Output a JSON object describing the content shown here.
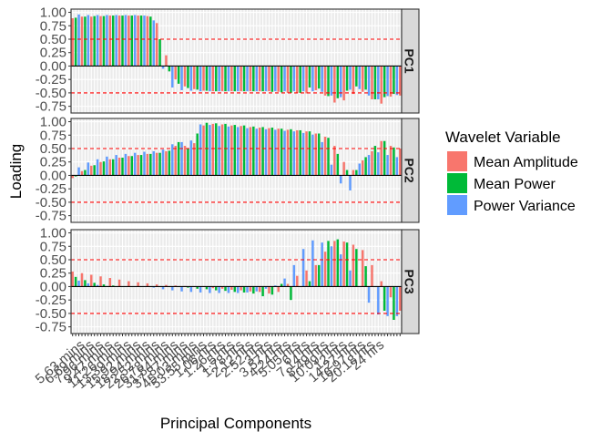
{
  "chart_data": {
    "type": "bar",
    "title": "",
    "xlabel": "Principal Components",
    "ylabel": "Loading",
    "ylim": [
      -0.875,
      1.06
    ],
    "y_ticks": [
      1.0,
      0.75,
      0.5,
      0.25,
      0.0,
      -0.25,
      -0.5,
      -0.75
    ],
    "y_tick_labels": [
      "1.00",
      "0.75",
      "0.50",
      "0.25",
      "0.00",
      "-0.25",
      "-0.50",
      "-0.75"
    ],
    "reference_lines": [
      0.5,
      -0.5
    ],
    "reference_line_color": "#FF0000",
    "grid": true,
    "facet_labels": [
      "PC1",
      "PC2",
      "PC3"
    ],
    "legend": {
      "title": "Wavelet Variable",
      "position": "right",
      "entries": [
        {
          "name": "Mean Amplitude",
          "color": "#F8766D"
        },
        {
          "name": "Mean Power",
          "color": "#00BA38"
        },
        {
          "name": "Power Variance",
          "color": "#619CFF"
        }
      ]
    },
    "x_tick_labels": [
      "5.63 mins",
      "6.69 mins",
      "7.96 mins",
      "9.47 mins",
      "11.26 mins",
      "13.39 mins",
      "15.92 mins",
      "18.94 mins",
      "22.52 mins",
      "26.78 mins",
      "31.84 mins",
      "37.87 mins",
      "45.03 mins",
      "53.55 mins",
      "1.06 hrs",
      "1.26 hrs",
      "1.5 hrs",
      "1.78 hrs",
      "2.12 hrs",
      "2.52 hrs",
      "3 hrs",
      "3.57 hrs",
      "4.24 hrs",
      "5.05 hrs",
      "6 hrs",
      "7.14 hrs",
      "8.49 hrs",
      "10.09 hrs",
      "12 hrs",
      "14.27 hrs",
      "16.97 hrs",
      "20.18 hrs",
      "24 hrs"
    ],
    "categories_per_label": 3,
    "series": [
      {
        "name": "Mean Amplitude",
        "panel": "PC1",
        "values": [
          0.89,
          0.92,
          0.91,
          0.92,
          0.92,
          0.92,
          0.92,
          0.93,
          0.93,
          0.93,
          0.93,
          0.93,
          0.94,
          0.94,
          0.94,
          0.94,
          0.94,
          0.94,
          0.94,
          0.94,
          0.94,
          0.94,
          0.94,
          0.94,
          0.93,
          0.92,
          0.9,
          0.8,
          0.58,
          0.45,
          0.2,
          -0.05,
          -0.15,
          -0.25,
          -0.32,
          -0.35,
          -0.38,
          -0.4,
          -0.42,
          -0.43,
          -0.44,
          -0.45,
          -0.46,
          -0.46,
          -0.46,
          -0.47,
          -0.47,
          -0.47,
          -0.47,
          -0.47,
          -0.47,
          -0.47,
          -0.47,
          -0.47,
          -0.47,
          -0.47,
          -0.47,
          -0.47,
          -0.47,
          -0.47,
          -0.47,
          -0.47,
          -0.47,
          -0.47,
          -0.48,
          -0.48,
          -0.48,
          -0.49,
          -0.5,
          -0.5,
          -0.5,
          -0.5,
          -0.5,
          -0.5,
          -0.51,
          -0.51,
          -0.46,
          -0.44,
          -0.45,
          -0.48,
          -0.52,
          -0.55,
          -0.6,
          -0.65,
          -0.68,
          -0.7,
          -0.68,
          -0.64,
          -0.6,
          -0.56,
          -0.52,
          -0.49,
          -0.48,
          -0.48,
          -0.5,
          -0.56,
          -0.62,
          -0.7,
          -0.74,
          -0.7,
          -0.64,
          -0.6,
          -0.57,
          -0.55,
          -0.54,
          -0.55
        ]
      },
      {
        "name": "Mean Power",
        "panel": "PC1",
        "values": [
          0.85,
          0.9,
          0.91,
          0.91,
          0.92,
          0.92,
          0.92,
          0.93,
          0.93,
          0.93,
          0.93,
          0.93,
          0.94,
          0.94,
          0.94,
          0.94,
          0.94,
          0.94,
          0.94,
          0.94,
          0.94,
          0.94,
          0.94,
          0.94,
          0.93,
          0.92,
          0.88,
          0.72,
          0.5,
          0.3,
          0.05,
          -0.1,
          -0.18,
          -0.26,
          -0.33,
          -0.36,
          -0.39,
          -0.41,
          -0.42,
          -0.43,
          -0.44,
          -0.45,
          -0.46,
          -0.46,
          -0.46,
          -0.47,
          -0.47,
          -0.47,
          -0.47,
          -0.47,
          -0.47,
          -0.47,
          -0.47,
          -0.47,
          -0.47,
          -0.47,
          -0.47,
          -0.47,
          -0.47,
          -0.47,
          -0.47,
          -0.47,
          -0.47,
          -0.47,
          -0.48,
          -0.48,
          -0.48,
          -0.49,
          -0.5,
          -0.5,
          -0.5,
          -0.5,
          -0.5,
          -0.5,
          -0.49,
          -0.46,
          -0.4,
          -0.36,
          -0.38,
          -0.42,
          -0.48,
          -0.52,
          -0.56,
          -0.6,
          -0.62,
          -0.6,
          -0.55,
          -0.5,
          -0.46,
          -0.43,
          -0.4,
          -0.38,
          -0.38,
          -0.4,
          -0.44,
          -0.5,
          -0.56,
          -0.62,
          -0.66,
          -0.62,
          -0.58,
          -0.55,
          -0.53,
          -0.52,
          -0.52,
          -0.52
        ]
      },
      {
        "name": "Power Variance",
        "panel": "PC1",
        "values": [
          0.97,
          0.96,
          0.96,
          0.95,
          0.95,
          0.95,
          0.95,
          0.95,
          0.95,
          0.95,
          0.95,
          0.95,
          0.95,
          0.95,
          0.95,
          0.95,
          0.95,
          0.95,
          0.95,
          0.95,
          0.95,
          0.95,
          0.94,
          0.94,
          0.92,
          0.9,
          0.85,
          0.6,
          0.25,
          -0.05,
          -0.25,
          -0.35,
          -0.4,
          -0.43,
          -0.44,
          -0.45,
          -0.45,
          -0.46,
          -0.46,
          -0.47,
          -0.47,
          -0.47,
          -0.47,
          -0.47,
          -0.47,
          -0.47,
          -0.47,
          -0.47,
          -0.47,
          -0.47,
          -0.47,
          -0.47,
          -0.47,
          -0.47,
          -0.47,
          -0.47,
          -0.47,
          -0.47,
          -0.47,
          -0.47,
          -0.47,
          -0.47,
          -0.47,
          -0.47,
          -0.47,
          -0.47,
          -0.47,
          -0.47,
          -0.47,
          -0.47,
          -0.47,
          -0.47,
          -0.47,
          -0.47,
          -0.47,
          -0.47,
          -0.47,
          -0.47,
          -0.47,
          -0.47,
          -0.48,
          -0.48,
          -0.5,
          -0.55,
          -0.6,
          -0.62,
          -0.58,
          -0.52,
          -0.47,
          -0.44,
          -0.42,
          -0.42,
          -0.43,
          -0.45,
          -0.5,
          -0.55,
          -0.58,
          -0.6,
          -0.62,
          -0.6,
          -0.58,
          -0.56,
          -0.55,
          -0.54,
          -0.54,
          -0.54
        ]
      },
      {
        "name": "Mean Amplitude",
        "panel": "PC2",
        "values": [
          -0.05,
          0.02,
          0.05,
          0.08,
          0.12,
          0.15,
          0.18,
          0.2,
          0.22,
          0.25,
          0.27,
          0.28,
          0.3,
          0.31,
          0.32,
          0.33,
          0.34,
          0.35,
          0.36,
          0.37,
          0.38,
          0.38,
          0.39,
          0.4,
          0.4,
          0.41,
          0.42,
          0.42,
          0.43,
          0.44,
          0.45,
          0.47,
          0.5,
          0.55,
          0.6,
          0.65,
          0.55,
          0.48,
          0.5,
          0.6,
          0.75,
          0.85,
          0.93,
          0.95,
          0.96,
          0.96,
          0.96,
          0.95,
          0.95,
          0.94,
          0.94,
          0.93,
          0.93,
          0.92,
          0.92,
          0.91,
          0.91,
          0.9,
          0.9,
          0.9,
          0.89,
          0.89,
          0.88,
          0.88,
          0.88,
          0.87,
          0.87,
          0.86,
          0.86,
          0.85,
          0.85,
          0.84,
          0.84,
          0.83,
          0.82,
          0.82,
          0.81,
          0.8,
          0.78,
          0.76,
          0.74,
          0.72,
          0.7,
          0.65,
          0.55,
          0.45,
          0.35,
          0.25,
          0.18,
          0.12,
          0.1,
          0.12,
          0.2,
          0.28,
          0.35,
          0.4,
          0.45,
          0.52,
          0.6,
          0.64,
          0.62,
          0.58,
          0.55,
          0.52,
          0.5,
          0.5
        ]
      },
      {
        "name": "Mean Power",
        "panel": "PC2",
        "values": [
          -0.08,
          -0.02,
          0.03,
          0.06,
          0.1,
          0.13,
          0.16,
          0.19,
          0.21,
          0.24,
          0.26,
          0.27,
          0.29,
          0.3,
          0.31,
          0.32,
          0.33,
          0.34,
          0.35,
          0.36,
          0.37,
          0.37,
          0.38,
          0.39,
          0.39,
          0.4,
          0.41,
          0.41,
          0.42,
          0.43,
          0.44,
          0.46,
          0.5,
          0.56,
          0.62,
          0.68,
          0.58,
          0.5,
          0.52,
          0.62,
          0.78,
          0.88,
          0.96,
          0.98,
          0.98,
          0.98,
          0.97,
          0.97,
          0.96,
          0.96,
          0.95,
          0.95,
          0.94,
          0.94,
          0.93,
          0.93,
          0.92,
          0.92,
          0.91,
          0.91,
          0.9,
          0.9,
          0.9,
          0.89,
          0.89,
          0.88,
          0.88,
          0.87,
          0.87,
          0.86,
          0.86,
          0.85,
          0.85,
          0.84,
          0.84,
          0.83,
          0.82,
          0.81,
          0.8,
          0.78,
          0.76,
          0.74,
          0.7,
          0.64,
          0.52,
          0.4,
          0.28,
          0.18,
          0.1,
          0.05,
          0.05,
          0.1,
          0.18,
          0.26,
          0.34,
          0.4,
          0.47,
          0.55,
          0.62,
          0.66,
          0.64,
          0.6,
          0.56,
          0.52,
          0.5,
          0.48
        ]
      },
      {
        "name": "Power Variance",
        "panel": "PC2",
        "values": [
          0.08,
          0.12,
          0.15,
          0.18,
          0.21,
          0.24,
          0.26,
          0.28,
          0.3,
          0.32,
          0.34,
          0.35,
          0.36,
          0.37,
          0.38,
          0.39,
          0.4,
          0.4,
          0.41,
          0.42,
          0.42,
          0.43,
          0.43,
          0.44,
          0.44,
          0.45,
          0.45,
          0.46,
          0.47,
          0.48,
          0.5,
          0.53,
          0.58,
          0.63,
          0.7,
          0.62,
          0.52,
          0.54,
          0.65,
          0.78,
          0.9,
          0.95,
          0.95,
          0.94,
          0.94,
          0.93,
          0.93,
          0.92,
          0.92,
          0.91,
          0.91,
          0.9,
          0.9,
          0.9,
          0.89,
          0.89,
          0.88,
          0.88,
          0.88,
          0.87,
          0.87,
          0.86,
          0.86,
          0.85,
          0.85,
          0.85,
          0.84,
          0.84,
          0.83,
          0.83,
          0.82,
          0.82,
          0.81,
          0.8,
          0.79,
          0.78,
          0.77,
          0.76,
          0.74,
          0.7,
          0.62,
          0.5,
          0.35,
          0.2,
          0.05,
          -0.05,
          -0.15,
          -0.3,
          -0.4,
          -0.28,
          -0.1,
          0.1,
          0.22,
          0.3,
          0.35,
          0.38,
          0.4,
          0.42,
          0.43,
          0.42,
          0.4,
          0.38,
          0.36,
          0.35,
          0.34,
          0.34
        ]
      },
      {
        "name": "Mean Amplitude",
        "panel": "PC3",
        "values": [
          0.28,
          0.27,
          0.26,
          0.25,
          0.24,
          0.23,
          0.22,
          0.21,
          0.2,
          0.19,
          0.18,
          0.17,
          0.16,
          0.15,
          0.14,
          0.13,
          0.12,
          0.11,
          0.1,
          0.09,
          0.08,
          0.08,
          0.07,
          0.06,
          0.06,
          0.05,
          0.05,
          0.04,
          0.04,
          0.03,
          0.03,
          0.03,
          0.02,
          0.02,
          0.02,
          0.01,
          0.01,
          0.01,
          0.0,
          0.0,
          0.0,
          -0.01,
          -0.01,
          -0.02,
          -0.02,
          -0.03,
          -0.03,
          -0.04,
          -0.04,
          -0.05,
          -0.05,
          -0.06,
          -0.06,
          -0.07,
          -0.07,
          -0.08,
          -0.08,
          -0.09,
          -0.09,
          -0.1,
          -0.1,
          -0.11,
          -0.12,
          -0.13,
          -0.14,
          -0.12,
          -0.1,
          -0.05,
          0.0,
          0.05,
          0.1,
          0.15,
          0.2,
          0.25,
          0.28,
          0.3,
          0.32,
          0.35,
          0.4,
          0.45,
          0.55,
          0.65,
          0.75,
          0.82,
          0.85,
          0.86,
          0.85,
          0.84,
          0.82,
          0.8,
          0.78,
          0.76,
          0.72,
          0.68,
          0.6,
          0.5,
          0.4,
          0.3,
          0.2,
          0.1,
          0.0,
          -0.1,
          -0.2,
          -0.3,
          -0.4,
          -0.45
        ]
      },
      {
        "name": "Mean Power",
        "panel": "PC3",
        "values": [
          0.2,
          0.18,
          0.16,
          0.14,
          0.12,
          0.1,
          0.08,
          0.07,
          0.06,
          0.05,
          0.04,
          0.03,
          0.02,
          0.02,
          0.01,
          0.01,
          0.0,
          0.0,
          0.0,
          0.0,
          0.0,
          0.0,
          0.0,
          0.0,
          0.0,
          0.0,
          0.0,
          0.0,
          0.0,
          0.0,
          0.0,
          0.0,
          0.0,
          0.0,
          -0.01,
          -0.01,
          -0.02,
          -0.02,
          -0.03,
          -0.03,
          -0.04,
          -0.04,
          -0.05,
          -0.05,
          -0.06,
          -0.06,
          -0.07,
          -0.07,
          -0.08,
          -0.08,
          -0.09,
          -0.09,
          -0.1,
          -0.1,
          -0.11,
          -0.11,
          -0.12,
          -0.12,
          -0.13,
          -0.14,
          -0.15,
          -0.18,
          -0.22,
          -0.2,
          -0.15,
          -0.08,
          0.0,
          0.05,
          -0.05,
          -0.15,
          -0.25,
          -0.2,
          -0.1,
          0.0,
          0.1,
          0.15,
          0.1,
          0.05,
          0.2,
          0.4,
          0.6,
          0.75,
          0.85,
          0.9,
          0.9,
          0.88,
          0.86,
          0.84,
          0.82,
          0.8,
          0.75,
          0.7,
          0.62,
          0.5,
          0.38,
          0.25,
          0.12,
          0.0,
          -0.15,
          -0.3,
          -0.45,
          -0.55,
          -0.6,
          -0.62,
          -0.62,
          -0.6
        ]
      },
      {
        "name": "Power Variance",
        "panel": "PC3",
        "values": [
          0.15,
          0.13,
          0.11,
          0.09,
          0.08,
          0.06,
          0.05,
          0.04,
          0.03,
          0.02,
          0.01,
          0.01,
          0.0,
          0.0,
          0.0,
          0.0,
          0.0,
          0.0,
          0.0,
          0.0,
          0.0,
          0.0,
          0.0,
          0.0,
          0.0,
          -0.01,
          -0.02,
          -0.03,
          -0.04,
          -0.05,
          -0.06,
          -0.07,
          -0.07,
          -0.08,
          -0.08,
          -0.09,
          -0.09,
          -0.1,
          -0.1,
          -0.1,
          -0.11,
          -0.11,
          -0.11,
          -0.12,
          -0.12,
          -0.12,
          -0.12,
          -0.12,
          -0.12,
          -0.12,
          -0.12,
          -0.12,
          -0.12,
          -0.12,
          -0.12,
          -0.11,
          -0.11,
          -0.1,
          -0.1,
          -0.09,
          -0.08,
          -0.06,
          -0.04,
          -0.02,
          0.0,
          0.02,
          0.05,
          0.1,
          0.15,
          0.2,
          0.3,
          0.4,
          0.5,
          0.6,
          0.7,
          0.8,
          0.85,
          0.86,
          0.85,
          0.84,
          0.82,
          0.8,
          0.78,
          0.75,
          0.72,
          0.68,
          0.6,
          0.5,
          0.4,
          0.3,
          0.2,
          0.1,
          0.0,
          -0.1,
          -0.2,
          -0.3,
          -0.4,
          -0.48,
          -0.52,
          -0.55,
          -0.55,
          -0.55,
          -0.55,
          -0.55,
          -0.55,
          -0.55
        ]
      }
    ]
  }
}
